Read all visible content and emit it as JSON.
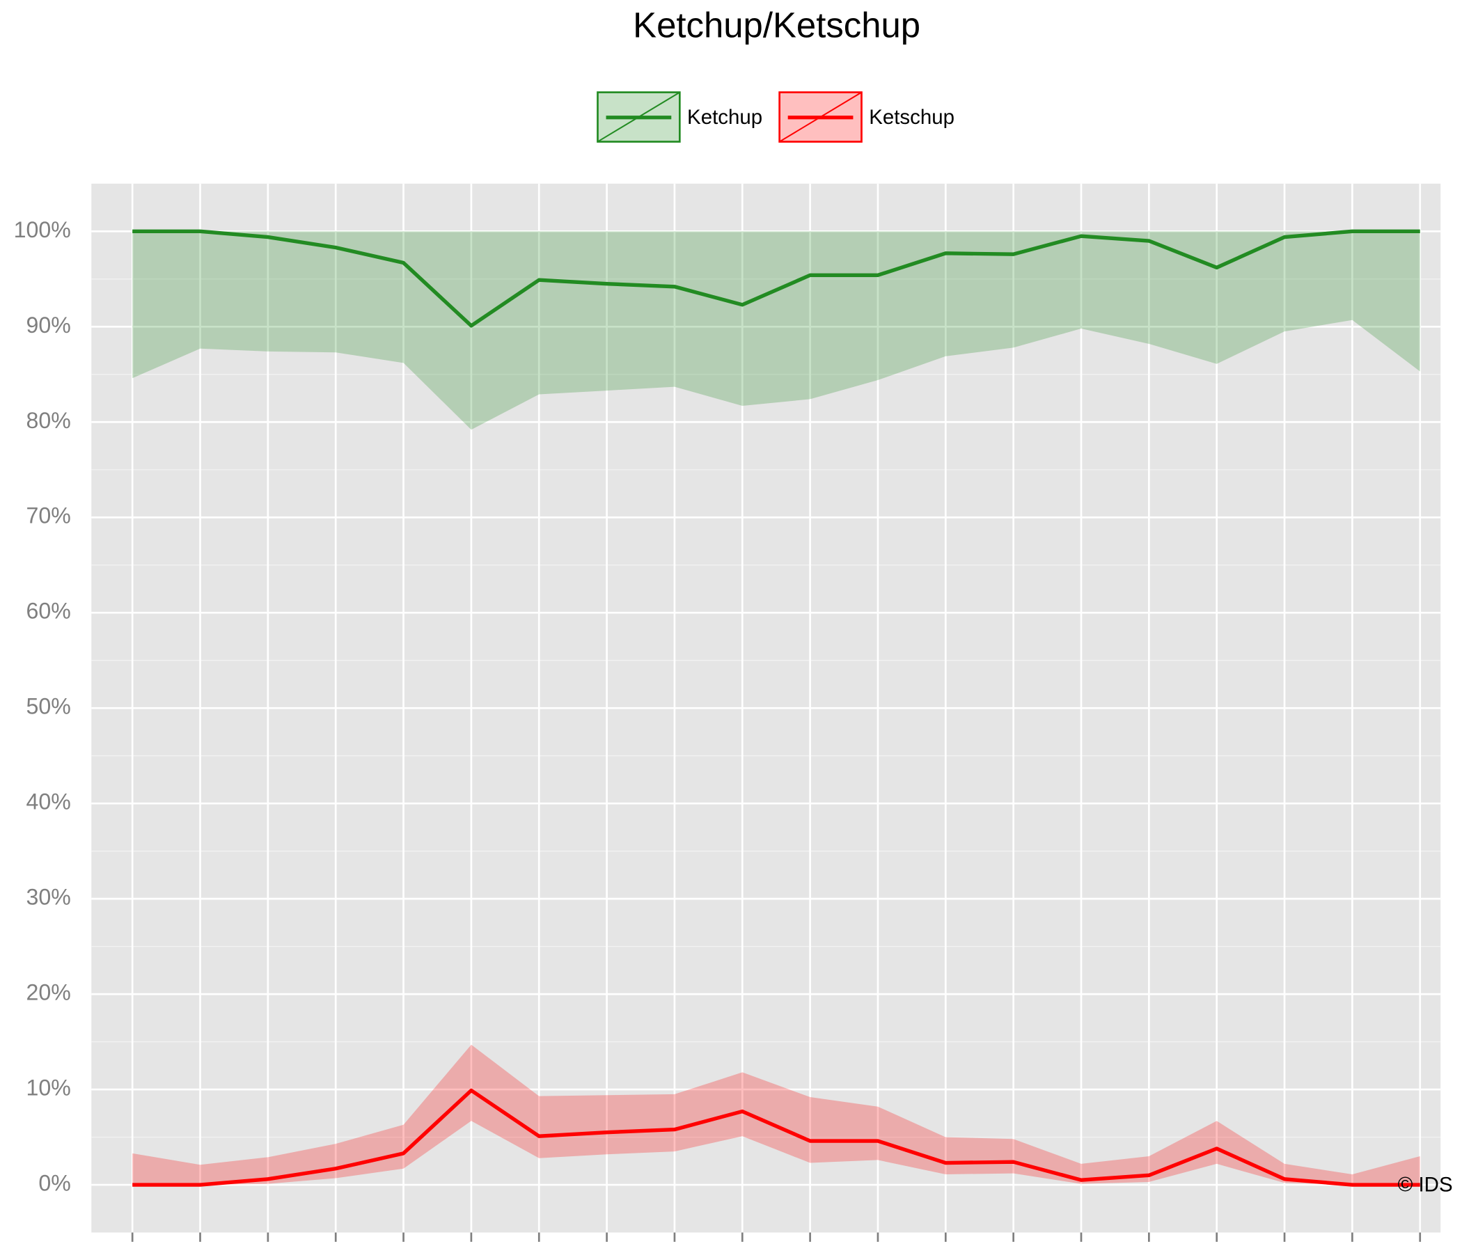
{
  "chart_data": {
    "type": "line",
    "title": "Ketchup/Ketschup",
    "categories": [
      null,
      null,
      null,
      null,
      null,
      null,
      null,
      null,
      null,
      null,
      null,
      null,
      null,
      null,
      null,
      null,
      null,
      null,
      null,
      null
    ],
    "series": [
      {
        "name": "Ketchup",
        "color": "#228b22",
        "band_color": "#228b22",
        "values": [
          100,
          100,
          99.4,
          98.3,
          96.7,
          90.1,
          94.9,
          94.5,
          94.2,
          92.3,
          95.4,
          95.4,
          97.7,
          97.6,
          99.5,
          99.0,
          96.2,
          99.4,
          100,
          100
        ],
        "lower": [
          84.6,
          87.7,
          87.4,
          87.3,
          86.2,
          79.2,
          82.9,
          83.3,
          83.7,
          81.7,
          82.4,
          84.4,
          86.9,
          87.8,
          89.8,
          88.2,
          86.1,
          89.5,
          90.7,
          85.3
        ],
        "upper": [
          100,
          100,
          100,
          100,
          100,
          100,
          100,
          100,
          100,
          100,
          100,
          100,
          100,
          100,
          100,
          100,
          100,
          100,
          100,
          100
        ]
      },
      {
        "name": "Ketschup",
        "color": "#ff0000",
        "band_color": "#ff0000",
        "values": [
          0,
          0,
          0.6,
          1.7,
          3.3,
          9.9,
          5.1,
          5.5,
          5.8,
          7.7,
          4.6,
          4.6,
          2.3,
          2.4,
          0.5,
          1.0,
          3.8,
          0.6,
          0,
          0
        ],
        "lower": [
          0,
          0,
          0.1,
          0.7,
          1.7,
          6.7,
          2.8,
          3.2,
          3.5,
          5.1,
          2.3,
          2.6,
          1.1,
          1.2,
          0.1,
          0.3,
          2.2,
          0.2,
          0,
          0
        ],
        "upper": [
          3.3,
          2.1,
          2.9,
          4.3,
          6.3,
          14.7,
          9.3,
          9.4,
          9.5,
          11.8,
          9.2,
          8.2,
          5.0,
          4.8,
          2.2,
          3.0,
          6.7,
          2.2,
          1.1,
          3.0
        ]
      }
    ],
    "ylim": [
      -5,
      105
    ],
    "yticks": [
      {
        "value": 0,
        "label": "0%"
      },
      {
        "value": 10,
        "label": "10%"
      },
      {
        "value": 20,
        "label": "20%"
      },
      {
        "value": 30,
        "label": "30%"
      },
      {
        "value": 40,
        "label": "40%"
      },
      {
        "value": 50,
        "label": "50%"
      },
      {
        "value": 60,
        "label": "60%"
      },
      {
        "value": 70,
        "label": "70%"
      },
      {
        "value": 80,
        "label": "80%"
      },
      {
        "value": 90,
        "label": "90%"
      },
      {
        "value": 100,
        "label": "100%"
      }
    ],
    "grid": true,
    "legend_position": "top",
    "annotation": "© IDS"
  }
}
